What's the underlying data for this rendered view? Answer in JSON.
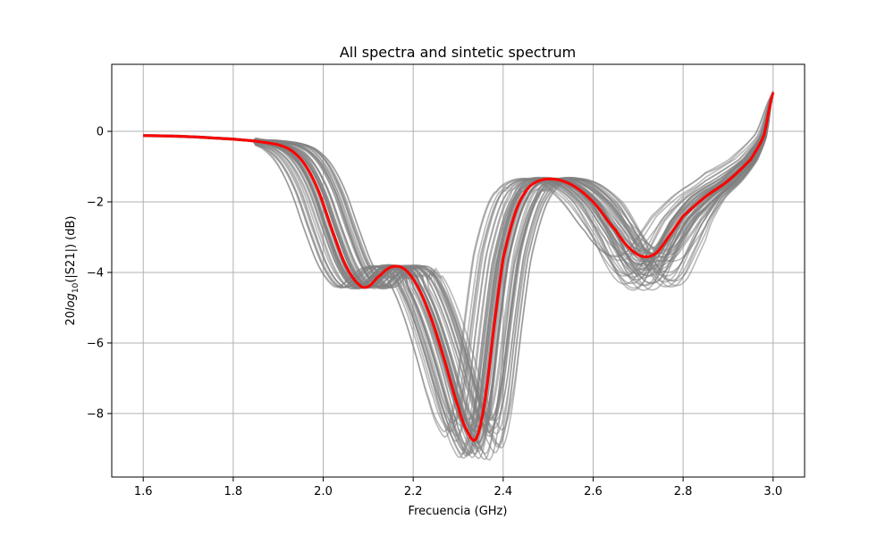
{
  "chart_data": {
    "type": "line",
    "title": "All spectra and sintetic spectrum",
    "xlabel": "Frecuencia (GHz)",
    "ylabel_prefix": "20",
    "ylabel_log": "log",
    "ylabel_sub": "10",
    "ylabel_suffix": "(|S21|) (dB)",
    "xlim": [
      1.53,
      3.07
    ],
    "ylim": [
      -9.8,
      1.9
    ],
    "xticks": [
      1.6,
      1.8,
      2.0,
      2.2,
      2.4,
      2.6,
      2.8,
      3.0
    ],
    "xtick_labels": [
      "1.6",
      "1.8",
      "2.0",
      "2.2",
      "2.4",
      "2.6",
      "2.8",
      "3.0"
    ],
    "yticks": [
      0,
      -2,
      -4,
      -6,
      -8
    ],
    "ytick_labels": [
      "0",
      "−2",
      "−4",
      "−6",
      "−8"
    ],
    "grid": true,
    "colors": {
      "sintetic": "#ff0000",
      "spectra": "#808080"
    },
    "sintetic_spectrum": {
      "x": [
        1.6,
        1.7,
        1.8,
        1.85,
        1.9,
        1.93,
        1.96,
        1.99,
        2.02,
        2.05,
        2.08,
        2.1,
        2.12,
        2.15,
        2.18,
        2.21,
        2.24,
        2.27,
        2.3,
        2.32,
        2.34,
        2.36,
        2.38,
        2.4,
        2.43,
        2.46,
        2.5,
        2.55,
        2.6,
        2.65,
        2.68,
        2.71,
        2.74,
        2.77,
        2.8,
        2.85,
        2.9,
        2.95,
        2.98,
        3.0
      ],
      "y": [
        -0.12,
        -0.15,
        -0.22,
        -0.28,
        -0.38,
        -0.55,
        -0.95,
        -1.7,
        -2.8,
        -3.8,
        -4.35,
        -4.4,
        -4.15,
        -3.85,
        -3.9,
        -4.4,
        -5.3,
        -6.5,
        -7.8,
        -8.5,
        -8.72,
        -7.6,
        -5.5,
        -3.6,
        -2.2,
        -1.55,
        -1.35,
        -1.5,
        -2.0,
        -2.8,
        -3.3,
        -3.55,
        -3.45,
        -2.95,
        -2.4,
        -1.85,
        -1.4,
        -0.8,
        -0.1,
        1.1
      ]
    }
  }
}
